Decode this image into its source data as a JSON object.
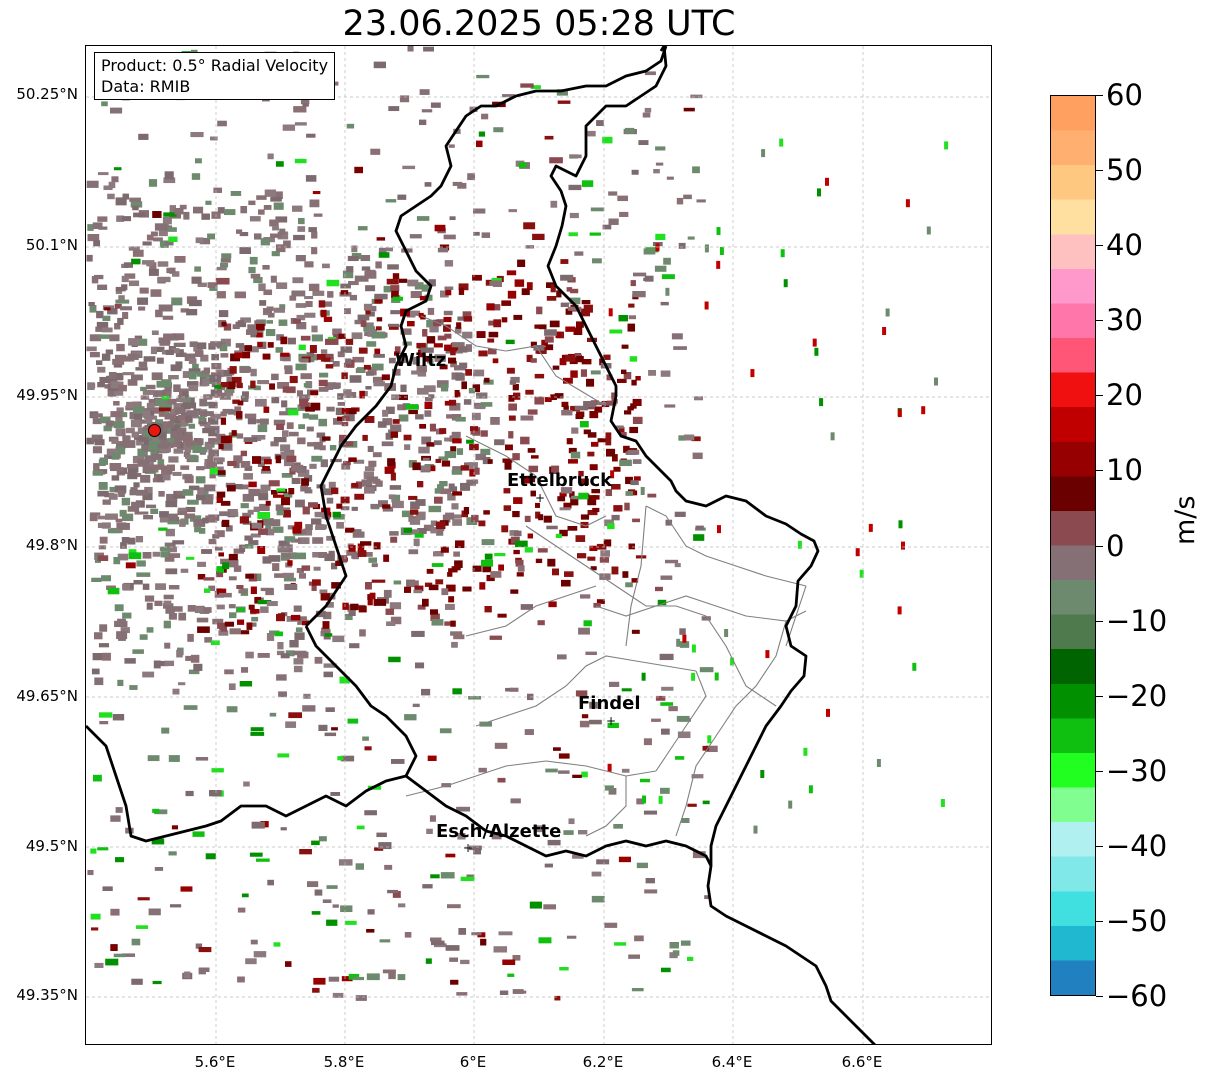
{
  "title": "23.06.2025 05:28 UTC",
  "info_box": {
    "product": "Product: 0.5° Radial Velocity",
    "data": "Data: RMIB"
  },
  "lat_ticks": [
    "50.25°N",
    "50.1°N",
    "49.95°N",
    "49.8°N",
    "49.65°N",
    "49.5°N",
    "49.35°N"
  ],
  "lon_ticks": [
    "5.6°E",
    "5.8°E",
    "6°E",
    "6.2°E",
    "6.4°E",
    "6.6°E"
  ],
  "cities": [
    {
      "name": "Wiltz"
    },
    {
      "name": "Ettelbruck"
    },
    {
      "name": "Findel"
    },
    {
      "name": "Esch/Alzette"
    }
  ],
  "radar_site_color": "#e8170f",
  "colorbar": {
    "unit": "m/s",
    "min": -60,
    "max": 60,
    "tick_labels": [
      "60",
      "50",
      "40",
      "30",
      "20",
      "10",
      "0",
      "−10",
      "−20",
      "−30",
      "−40",
      "−50",
      "−60"
    ],
    "colors_top_to_bottom": [
      "#ffa060",
      "#ffb070",
      "#ffc880",
      "#ffe0a0",
      "#ffc0c0",
      "#ff99cc",
      "#ff77aa",
      "#ff5577",
      "#f01010",
      "#c00000",
      "#960000",
      "#6a0000",
      "#8a4a50",
      "#857075",
      "#6e8a6e",
      "#4e7a4e",
      "#006400",
      "#009000",
      "#10c010",
      "#20ff20",
      "#80ff90",
      "#b0f0f0",
      "#80e8e8",
      "#40e0e0",
      "#20b8d0",
      "#2080c0"
    ]
  }
}
